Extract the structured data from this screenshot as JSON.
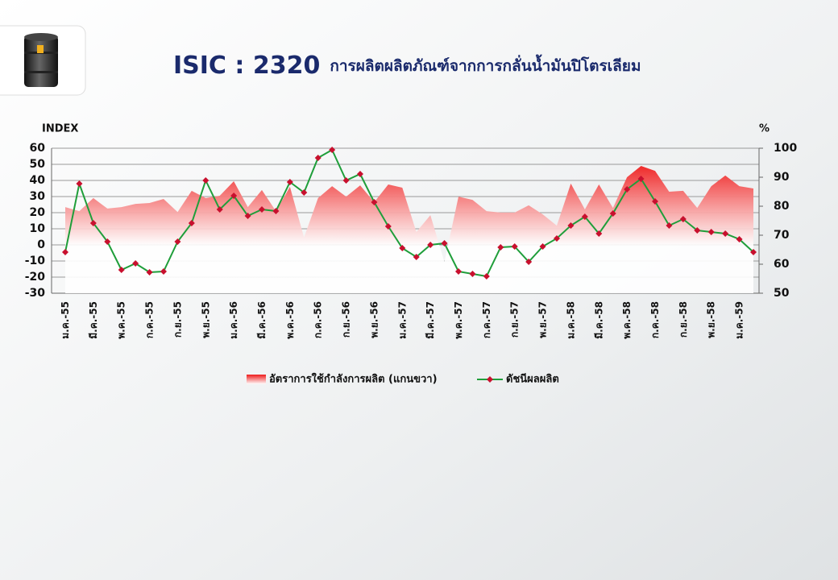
{
  "chart_data": {
    "type": "combo",
    "title": "ISIC : 2320",
    "subtitle": "การผลิตผลิตภัณฑ์จากการกลั่นน้ำมันปิโตรเลียม",
    "y_label": "INDEX",
    "y2_label": "%",
    "categories": [
      "ม.ค.-55",
      null,
      "มี.ค.-55",
      null,
      "พ.ค.-55",
      null,
      "ก.ค.-55",
      null,
      "ก.ย.-55",
      null,
      "พ.ย.-55",
      null,
      "ม.ค.-56",
      null,
      "มี.ค.-56",
      null,
      "พ.ค.-56",
      null,
      "ก.ค.-56",
      null,
      "ก.ย.-56",
      null,
      "พ.ย.-56",
      null,
      "ม.ค.-57",
      null,
      "มี.ค.-57",
      null,
      "พ.ค.-57",
      null,
      "ก.ค.-57",
      null,
      "ก.ย.-57",
      null,
      "พ.ย.-57",
      null,
      "ม.ค.-58",
      null,
      "มี.ค.-58",
      null,
      "พ.ค.-58",
      null,
      "ก.ค.-58",
      null,
      "ก.ย.-58",
      null,
      "พ.ย.-58",
      null,
      "ม.ค.-59",
      null
    ],
    "series": [
      {
        "name": "อัตราการใช้กำลังการผลิต (แกนขวา)",
        "type": "area",
        "axis": "y2",
        "color": "#ee1c1c",
        "values": [
          79.7,
          78.3,
          82.8,
          79.2,
          79.7,
          80.8,
          81.1,
          82.5,
          78,
          85.3,
          82.8,
          83.6,
          88.6,
          79.7,
          85.6,
          78.3,
          86.7,
          69.2,
          82.8,
          86.9,
          83.3,
          87.2,
          81.4,
          87.5,
          86.4,
          71.1,
          76.9,
          60.8,
          83.3,
          82.2,
          78.3,
          77.8,
          77.8,
          80.3,
          77.2,
          73.3,
          87.8,
          78.9,
          87.5,
          79.4,
          90,
          93.9,
          92.2,
          85,
          85.3,
          79.4,
          86.9,
          90.6,
          86.9,
          86.1
        ]
      },
      {
        "name": "ดัชนีผลผลิต",
        "type": "line",
        "color": "#1f9e3a",
        "marker_color": "#c8102e",
        "values": [
          -4.5,
          38,
          13.5,
          2,
          -15.5,
          -11.5,
          -17,
          -16.5,
          2,
          13.5,
          40,
          22,
          30.5,
          18,
          22,
          21,
          39,
          32.5,
          54,
          59,
          40,
          44,
          26.5,
          11.5,
          -2,
          -7.5,
          0,
          1,
          -16.5,
          -18,
          -19.5,
          -1.5,
          -1,
          -10.5,
          -1,
          4,
          12,
          17.5,
          7,
          19.5,
          34.5,
          41,
          27,
          12,
          16,
          9,
          8,
          7,
          3.5,
          -4.5
        ]
      }
    ],
    "ylim": [
      -30,
      60
    ],
    "yticks": [
      -30,
      -20,
      -10,
      0,
      10,
      20,
      30,
      40,
      50,
      60
    ],
    "y2lim": [
      50,
      100
    ],
    "y2ticks": [
      50,
      60,
      70,
      80,
      90,
      100
    ],
    "grid": true
  }
}
